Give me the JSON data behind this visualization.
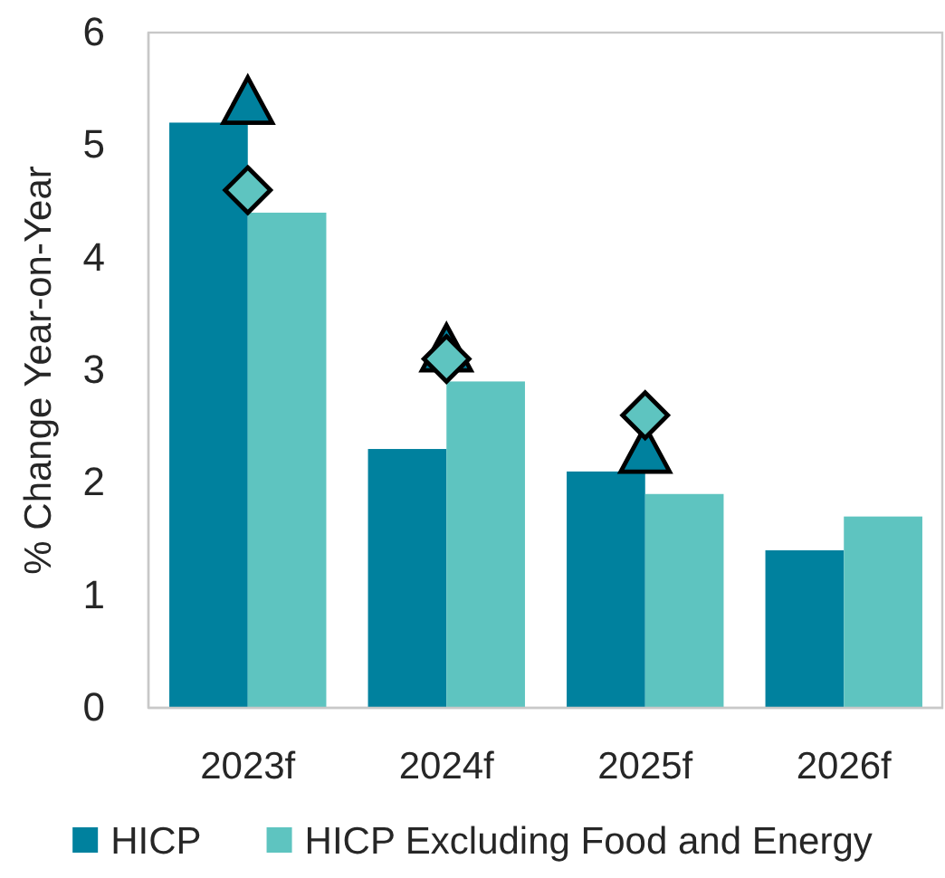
{
  "chart_data": {
    "type": "bar",
    "categories": [
      "2023f",
      "2024f",
      "2025f",
      "2026f"
    ],
    "ylabel": "% Change Year-on-Year",
    "ylim": [
      0,
      6
    ],
    "yticks": [
      0,
      1,
      2,
      3,
      4,
      5,
      6
    ],
    "legend": "bottom",
    "series": [
      {
        "name": "HICP",
        "color": "#00819e",
        "values": [
          5.2,
          2.3,
          2.1,
          1.4
        ]
      },
      {
        "name": "HICP Excluding Food and Energy",
        "color": "#5ec4c0",
        "values": [
          4.4,
          2.9,
          1.9,
          1.7
        ]
      },
      {
        "type": "scatter",
        "marker": "triangle",
        "color": "#00819e",
        "x": [
          "2023f",
          "2024f",
          "2025f"
        ],
        "values": [
          5.4,
          3.2,
          2.3
        ]
      },
      {
        "type": "scatter",
        "marker": "diamond",
        "color": "#5ec4c0",
        "x": [
          "2023f",
          "2024f",
          "2025f"
        ],
        "values": [
          4.6,
          3.1,
          2.6
        ]
      }
    ]
  }
}
